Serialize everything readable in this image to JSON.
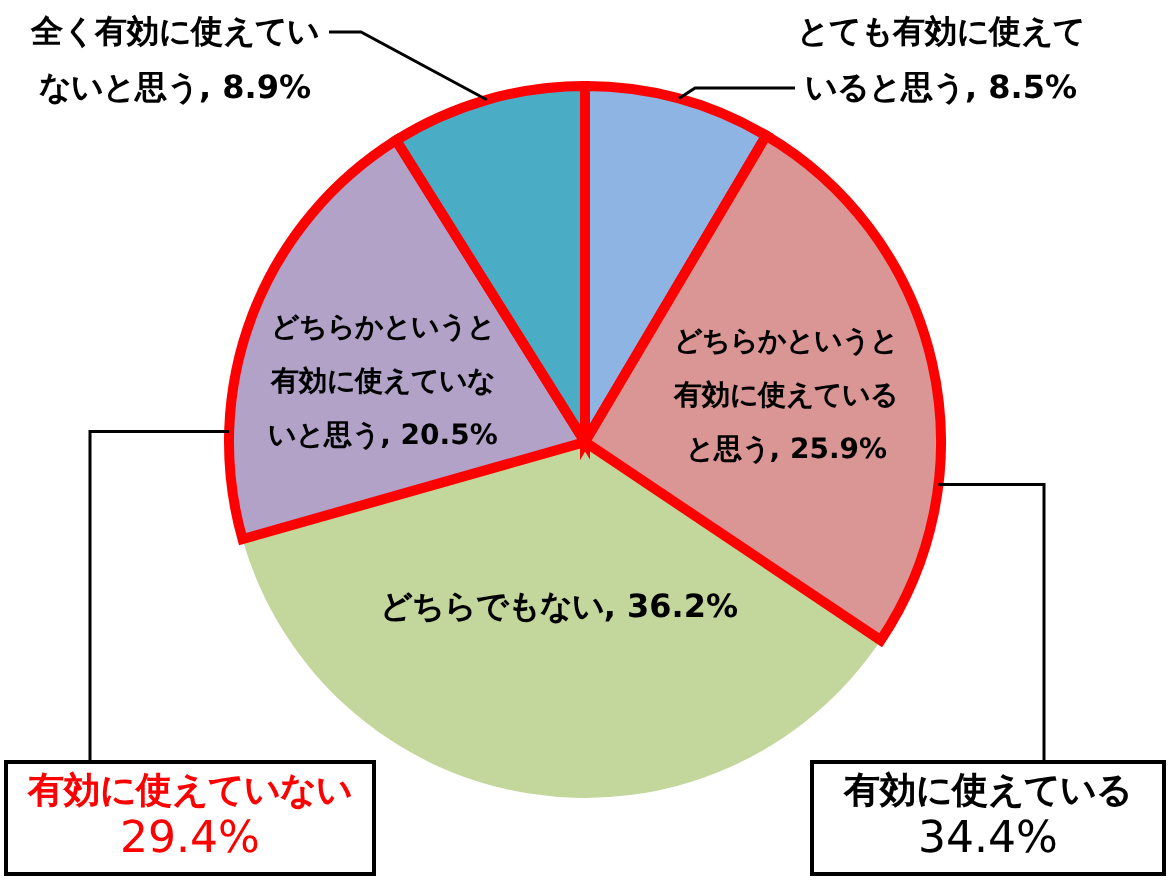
{
  "chart_data": {
    "type": "pie",
    "categories": [
      "とても有効に使えていると思う",
      "どちらかというと有効に使えていると思う",
      "どちらでもない",
      "どちらかというと有効に使えていないと思う",
      "全く有効に使えていないと思う"
    ],
    "values": [
      8.5,
      25.9,
      36.2,
      20.5,
      8.9
    ],
    "value_labels": [
      "8.5%",
      "25.9%",
      "36.2%",
      "20.5%",
      "8.9%"
    ],
    "colors": [
      "#8db4e2",
      "#d99694",
      "#c3d69b",
      "#b3a2c7",
      "#4bacc6"
    ],
    "annotations": [
      "有効に使えていない 29.4%",
      "有効に使えている 34.4%"
    ]
  }
}
